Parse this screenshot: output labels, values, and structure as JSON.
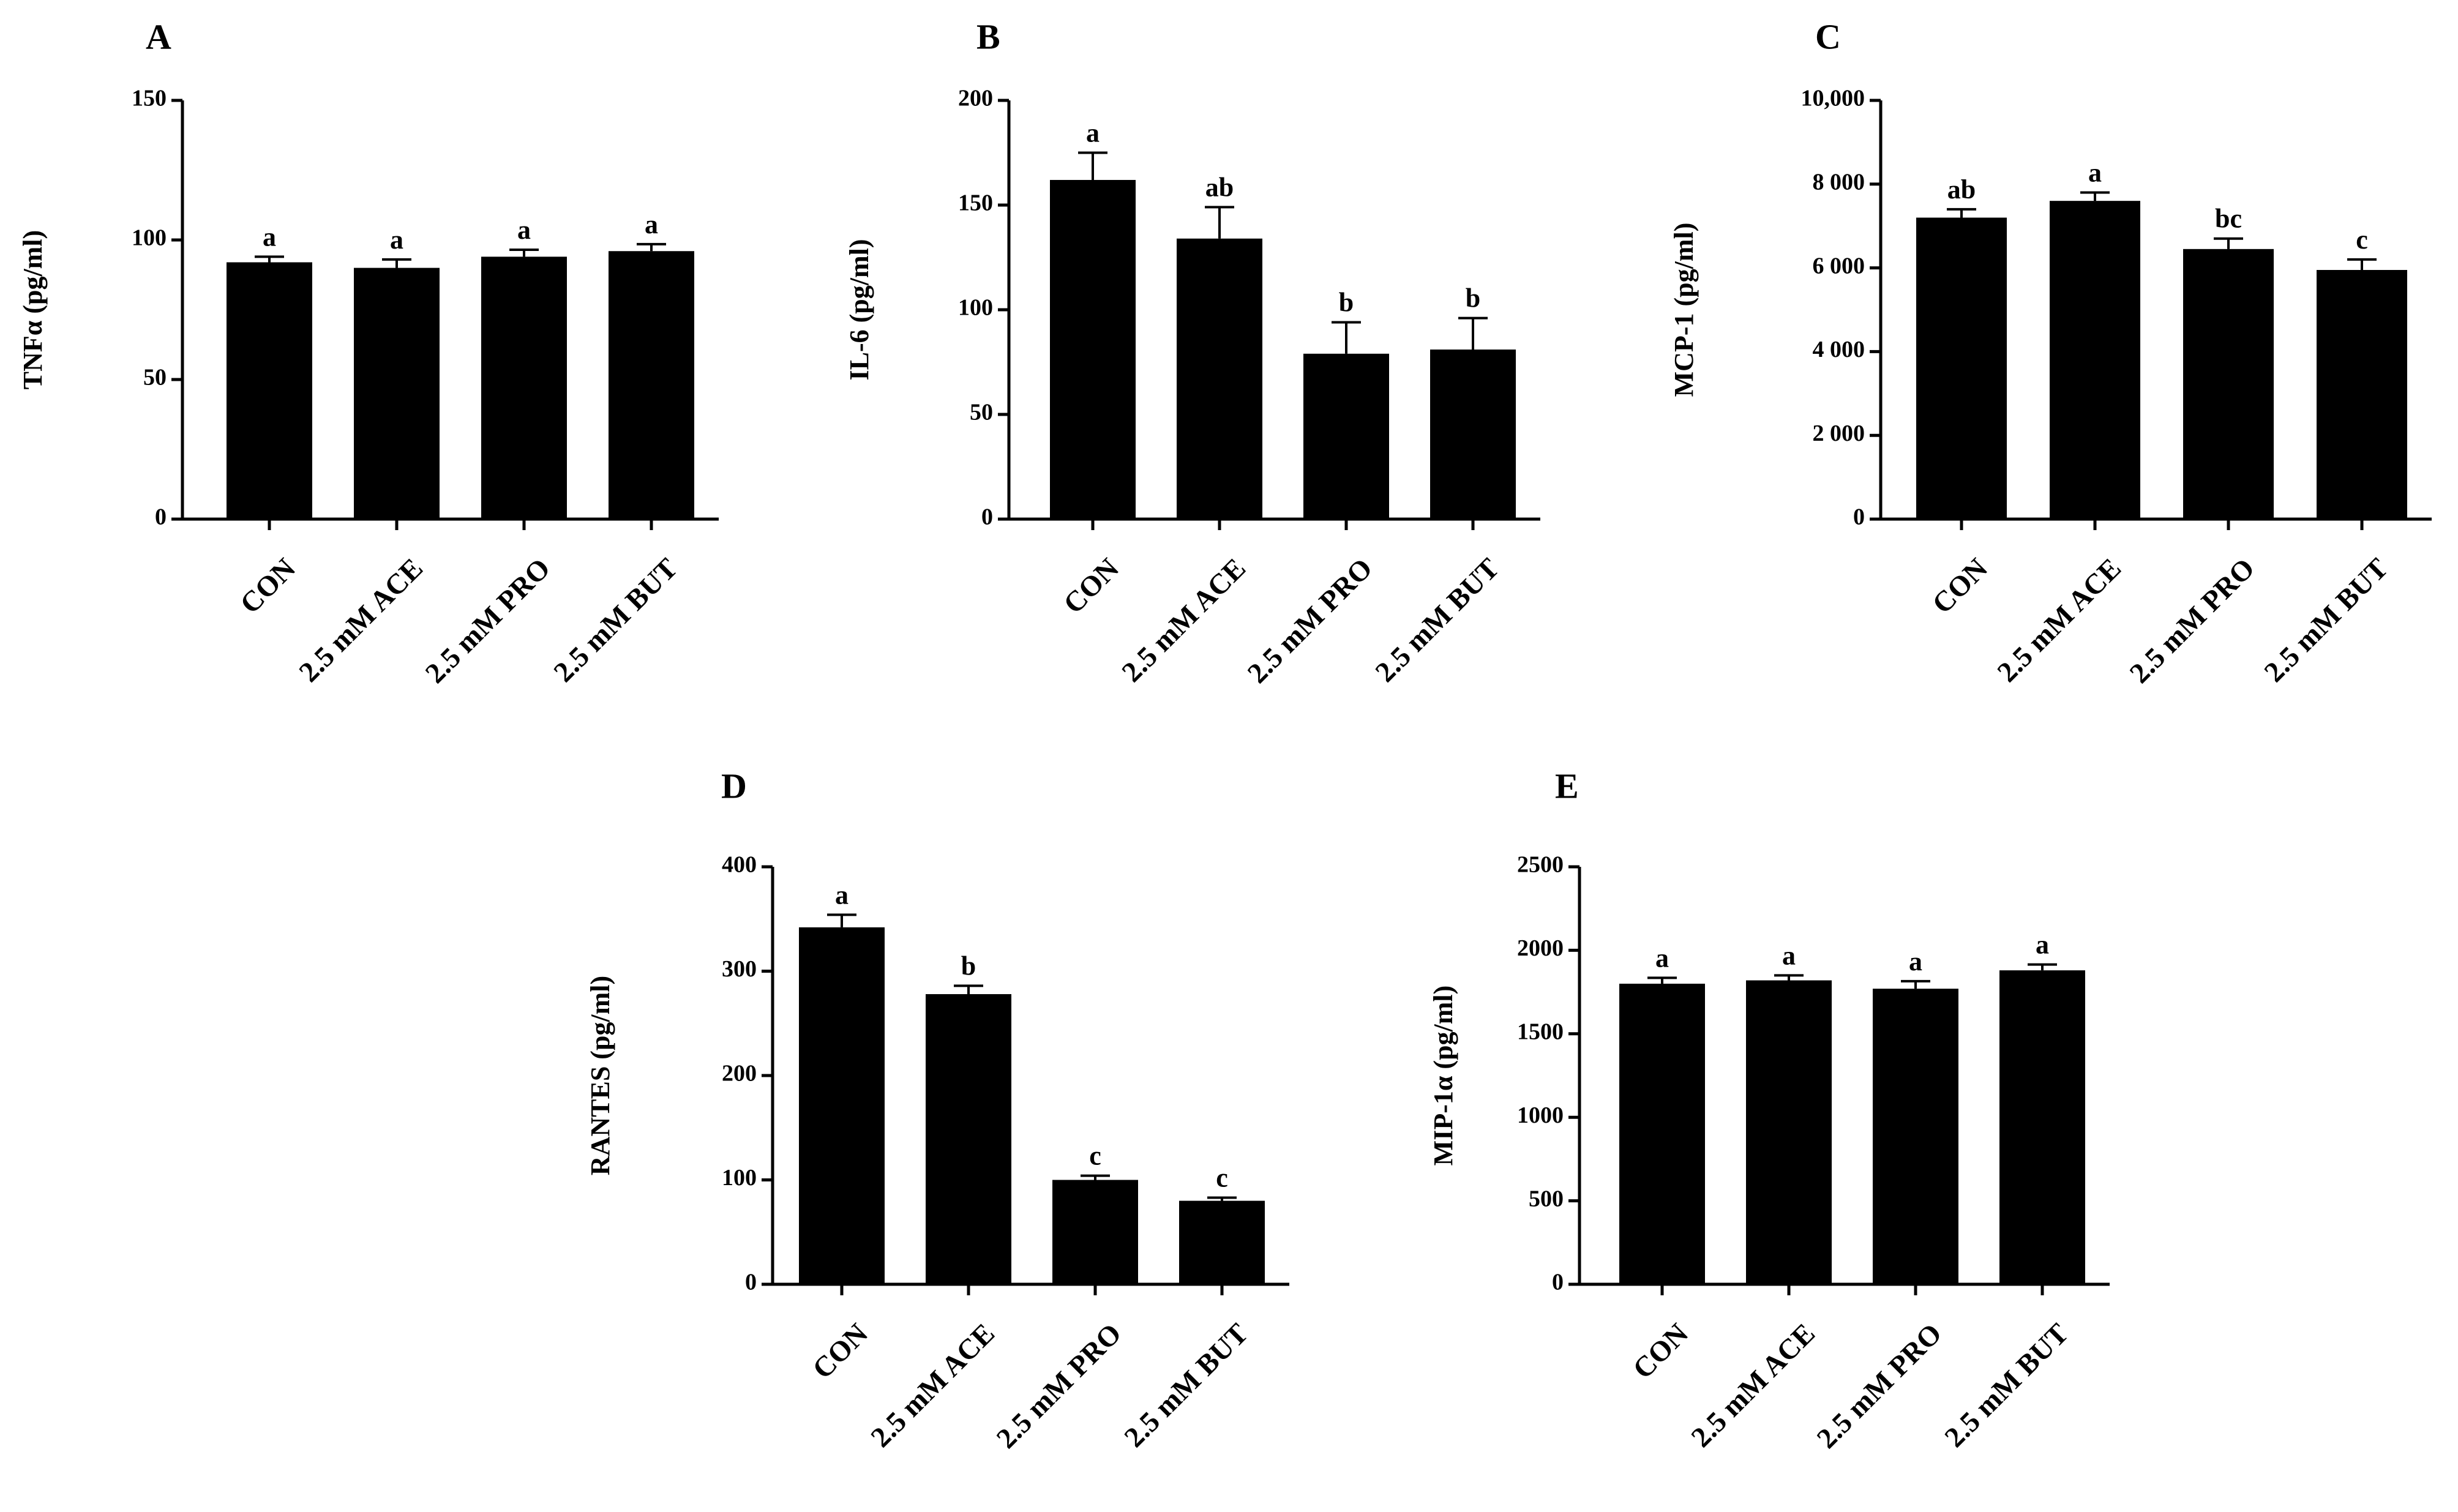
{
  "figure": {
    "panels": [
      {
        "letter": "A",
        "chart_data": {
          "type": "bar",
          "title": "",
          "ylabel": "TNFα (pg/ml)",
          "categories": [
            "CON",
            "2.5 mM ACE",
            "2.5 mM PRO",
            "2.5 mM BUT"
          ],
          "values": [
            92,
            90,
            94,
            96
          ],
          "errors": [
            2,
            3,
            2.5,
            2.5
          ],
          "significance": [
            "a",
            "a",
            "a",
            "a"
          ],
          "ylim": [
            0,
            150
          ],
          "yticks": [
            0,
            50,
            100,
            150
          ],
          "ytick_labels": [
            "0",
            "50",
            "100",
            "150"
          ]
        }
      },
      {
        "letter": "B",
        "chart_data": {
          "type": "bar",
          "title": "",
          "ylabel": "IL-6 (pg/ml)",
          "categories": [
            "CON",
            "2.5 mM ACE",
            "2.5 mM PRO",
            "2.5 mM BUT"
          ],
          "values": [
            162,
            134,
            79,
            81
          ],
          "errors": [
            13,
            15,
            15,
            15
          ],
          "significance": [
            "a",
            "ab",
            "b",
            "b"
          ],
          "ylim": [
            0,
            200
          ],
          "yticks": [
            0,
            50,
            100,
            150,
            200
          ],
          "ytick_labels": [
            "0",
            "50",
            "100",
            "150",
            "200"
          ]
        }
      },
      {
        "letter": "C",
        "chart_data": {
          "type": "bar",
          "title": "",
          "ylabel": "MCP-1 (pg/ml)",
          "categories": [
            "CON",
            "2.5 mM ACE",
            "2.5 mM PRO",
            "2.5 mM BUT"
          ],
          "values": [
            7200,
            7600,
            6450,
            5950
          ],
          "errors": [
            200,
            200,
            250,
            250
          ],
          "significance": [
            "ab",
            "a",
            "bc",
            "c"
          ],
          "ylim": [
            0,
            10000
          ],
          "yticks": [
            0,
            2000,
            4000,
            6000,
            8000,
            10000
          ],
          "ytick_labels": [
            "0",
            "2 000",
            "4 000",
            "6 000",
            "8 000",
            "10,000"
          ]
        }
      },
      {
        "letter": "D",
        "chart_data": {
          "type": "bar",
          "title": "",
          "ylabel": "RANTES  (pg/ml)",
          "categories": [
            "CON",
            "2.5 mM ACE",
            "2.5 mM PRO",
            "2.5 mM BUT"
          ],
          "values": [
            342,
            278,
            100,
            80
          ],
          "errors": [
            12,
            8,
            4,
            3
          ],
          "significance": [
            "a",
            "b",
            "c",
            "c"
          ],
          "ylim": [
            0,
            400
          ],
          "yticks": [
            0,
            100,
            200,
            300,
            400
          ],
          "ytick_labels": [
            "0",
            "100",
            "200",
            "300",
            "400"
          ]
        }
      },
      {
        "letter": "E",
        "chart_data": {
          "type": "bar",
          "title": "",
          "ylabel": "MIP-1α (pg/ml)",
          "categories": [
            "CON",
            "2.5 mM ACE",
            "2.5 mM PRO",
            "2.5 mM BUT"
          ],
          "values": [
            1800,
            1820,
            1770,
            1880
          ],
          "errors": [
            35,
            30,
            45,
            35
          ],
          "significance": [
            "a",
            "a",
            "a",
            "a"
          ],
          "ylim": [
            0,
            2500
          ],
          "yticks": [
            0,
            500,
            1000,
            1500,
            2000,
            2500
          ],
          "ytick_labels": [
            "0",
            "500",
            "1000",
            "1500",
            "2000",
            "2500"
          ]
        }
      }
    ]
  },
  "colors": {
    "bar": "#000000",
    "axis": "#000000",
    "background": "#ffffff"
  }
}
